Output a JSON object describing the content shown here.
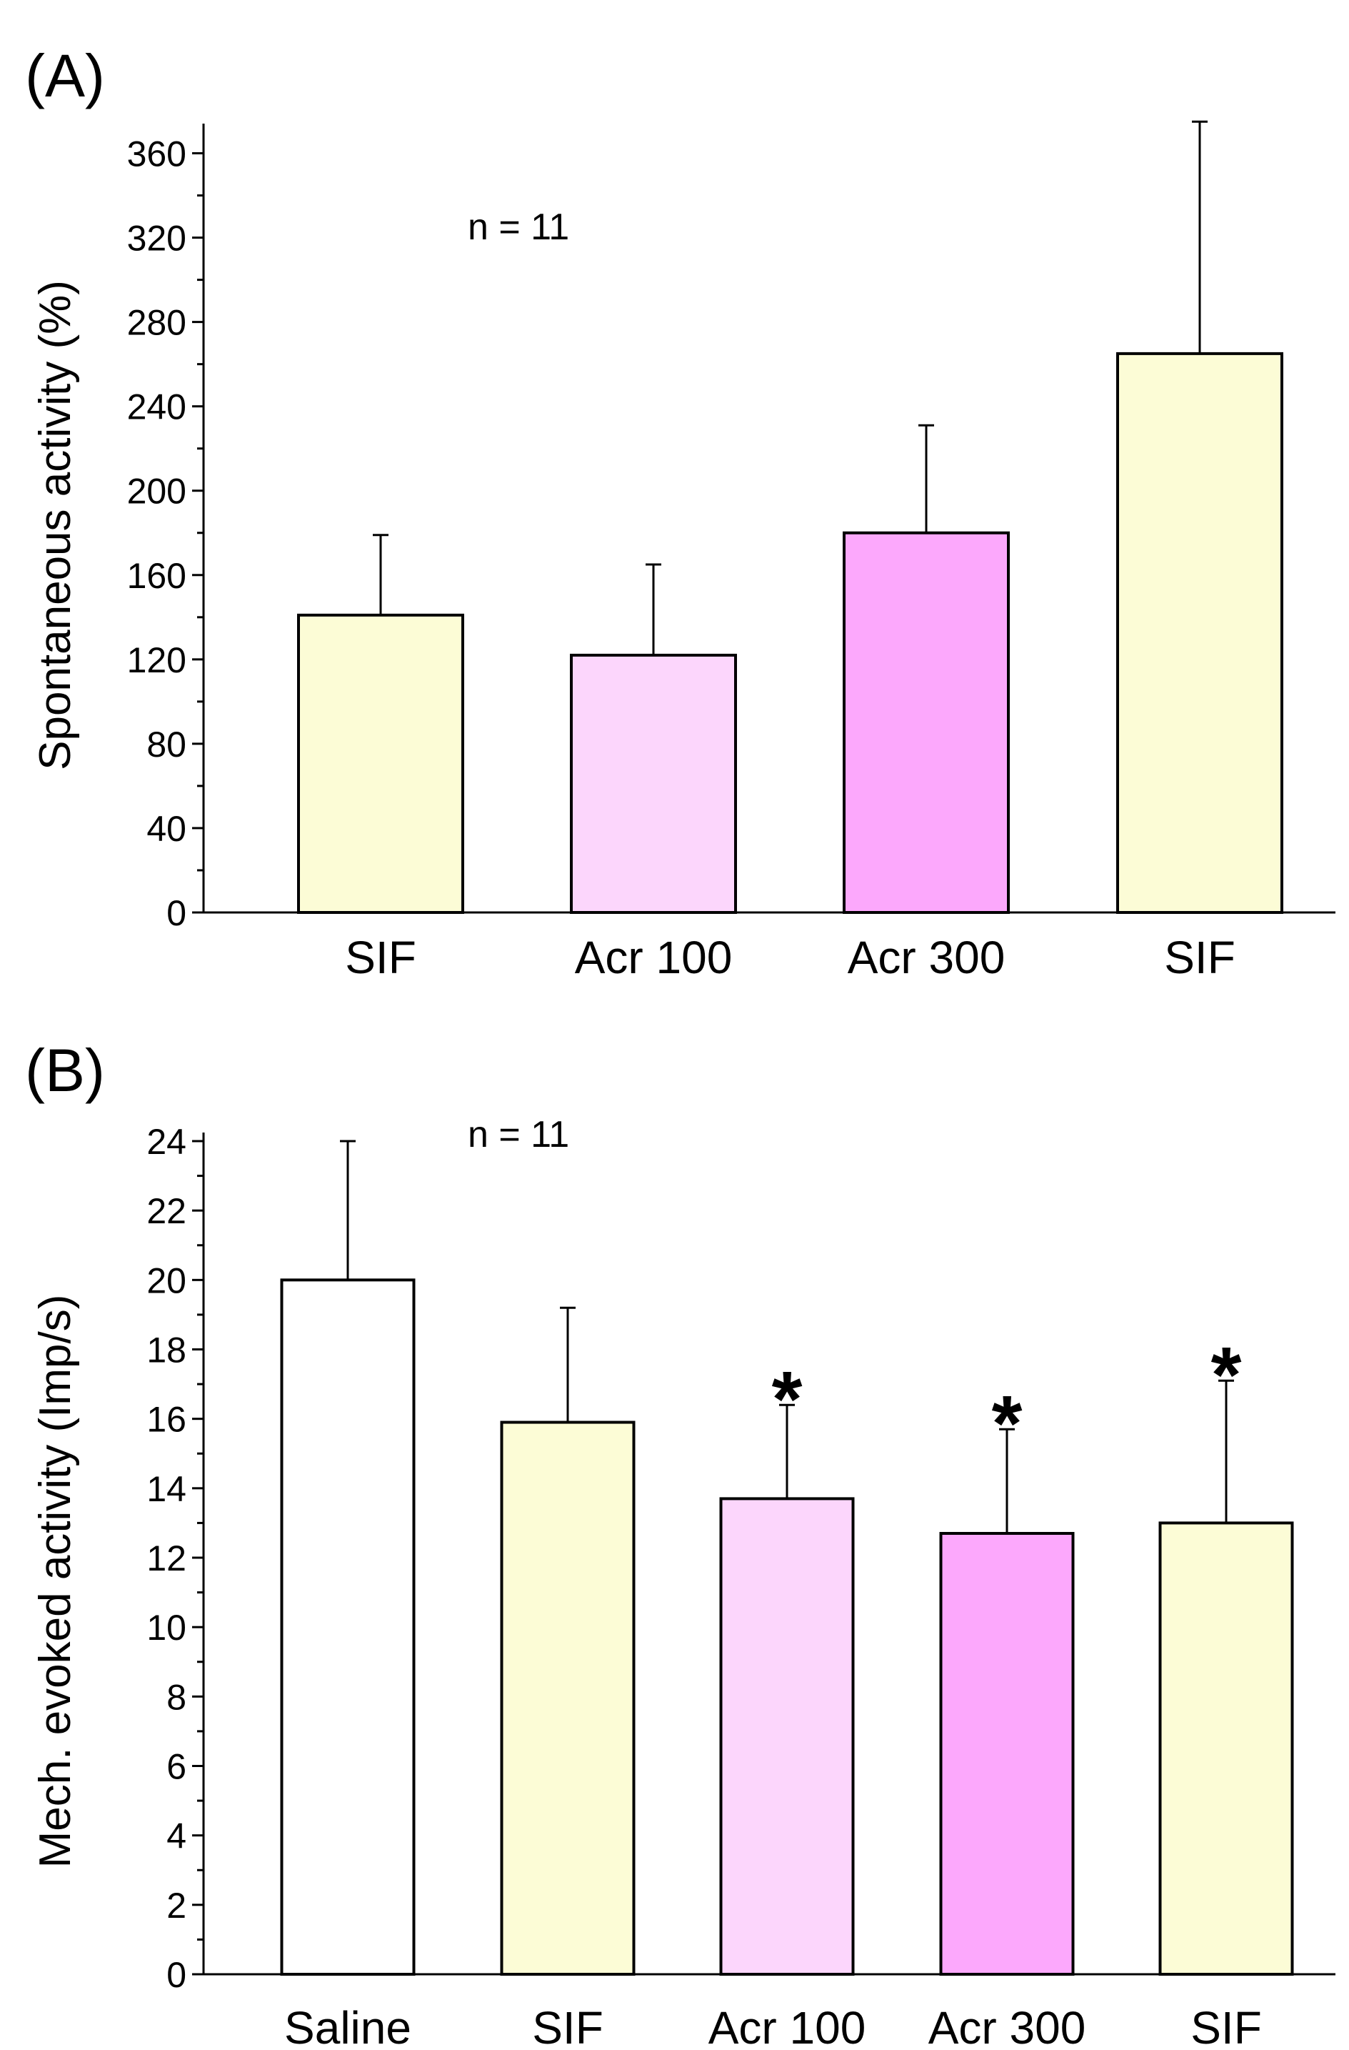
{
  "chart_data": [
    {
      "type": "bar",
      "panel_label": "(A)",
      "title": "",
      "xlabel": "",
      "ylabel": "Spontaneous activity (%)",
      "categories": [
        "SIF",
        "Acr 100",
        "Acr 300",
        "SIF"
      ],
      "values": [
        141,
        122,
        180,
        265
      ],
      "errors": [
        38,
        43,
        51,
        110
      ],
      "colors": [
        "#fcfcd6",
        "#fcd6fc",
        "#fca8fc",
        "#fcfcd6"
      ],
      "annotation": "n = 11",
      "significance": [
        "",
        "",
        "",
        ""
      ],
      "ylim": [
        0,
        370
      ],
      "yticks": [
        0,
        40,
        80,
        120,
        160,
        200,
        240,
        280,
        320,
        360
      ],
      "grid": false
    },
    {
      "type": "bar",
      "panel_label": "(B)",
      "title": "",
      "xlabel": "",
      "ylabel": "Mech. evoked  activity (Imp/s)",
      "categories": [
        "Saline",
        "SIF",
        "Acr 100",
        "Acr 300",
        "SIF"
      ],
      "values": [
        20.0,
        15.9,
        13.7,
        12.7,
        13.0
      ],
      "errors": [
        4.0,
        3.3,
        2.7,
        3.0,
        4.1
      ],
      "colors": [
        "#ffffff",
        "#fcfcd6",
        "#fcd6fc",
        "#fca8fc",
        "#fcfcd6"
      ],
      "annotation": "n = 11",
      "significance": [
        "",
        "",
        "*",
        "*",
        "*"
      ],
      "ylim": [
        0,
        24
      ],
      "yticks": [
        0,
        2,
        4,
        6,
        8,
        10,
        12,
        14,
        16,
        18,
        20,
        22,
        24
      ],
      "grid": false
    }
  ]
}
